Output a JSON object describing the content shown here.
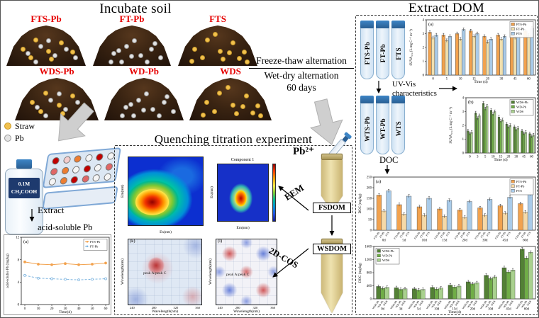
{
  "incubate": {
    "title": "Incubate soil",
    "piles": [
      {
        "label": "FTS-Pb",
        "straw": true,
        "pb": true
      },
      {
        "label": "FT-Pb",
        "straw": false,
        "pb": true
      },
      {
        "label": "FTS",
        "straw": true,
        "pb": false
      },
      {
        "label": "WDS-Pb",
        "straw": true,
        "pb": true
      },
      {
        "label": "WD-Pb",
        "straw": false,
        "pb": true
      },
      {
        "label": "WDS",
        "straw": true,
        "pb": false
      }
    ],
    "legend": [
      {
        "label": "Straw",
        "color": "#f2c14e"
      },
      {
        "label": "Pb",
        "color": "#e3e3e3"
      }
    ]
  },
  "transition": {
    "line1": "Freeze-thaw alternation",
    "line2": "Wet-dry alternation",
    "line3": "60 days"
  },
  "acid_section": {
    "bottle_line1": "0.1M",
    "bottle_line2": "CH₃COOH",
    "extract_label": "Extract",
    "product_label": "acid-soluble Pb"
  },
  "quenching": {
    "title": "Quenching titration experiment",
    "pb_label": "Pb²⁺",
    "eem_arrow": "EEM",
    "cos_arrow": "2D-COS",
    "fsdom": "FSDOM",
    "wsdom": "WSDOM",
    "eem_plot": {
      "xlabel": "Ex(nm)",
      "ylabel": "Em(nm)"
    },
    "component_plot": {
      "title": "Component 1",
      "xlabel": "Em(nm)",
      "ylabel": "Ex(nm)"
    },
    "cos_k": {
      "tag": "(k)",
      "annotation": "peak A/peak C",
      "xlabel": "Wavelength(nm)",
      "ylabel": "Wavelength(nm)",
      "xticks": [
        "240",
        "280",
        "320",
        "360"
      ]
    },
    "cos_l": {
      "tag": "(l)",
      "annotation": "peak A/peak C",
      "xlabel": "Wavelength(nm)",
      "ylabel": "Wavelength(nm)",
      "xticks": [
        "240",
        "280",
        "320",
        "360"
      ]
    }
  },
  "extract_dom": {
    "title": "Extract DOM",
    "ft_tubes": [
      "FTS-Pb",
      "FT-Pb",
      "FTS"
    ],
    "wt_tubes": [
      "WTS-Pb",
      "WT-Pb",
      "WTS"
    ],
    "uv_line1": "UV-Vis",
    "uv_line2": "characteristics",
    "doc_label": "DOC"
  },
  "chart_data": [
    {
      "id": "suva_ft",
      "type": "bar",
      "tag": "(a)",
      "categories": [
        "0",
        "5",
        "10",
        "15",
        "20",
        "30",
        "45",
        "60"
      ],
      "series": [
        {
          "name": "FTS-Pb",
          "color": "#f2a24e",
          "values": [
            3.1,
            2.9,
            3.0,
            3.2,
            2.8,
            2.9,
            3.0,
            3.2
          ]
        },
        {
          "name": "FT-Pb",
          "color": "#f0dfae",
          "values": [
            2.7,
            2.5,
            2.6,
            2.8,
            2.4,
            2.6,
            2.7,
            2.9
          ]
        },
        {
          "name": "FTS",
          "color": "#a9cbe9",
          "values": [
            2.9,
            2.8,
            3.3,
            3.0,
            2.6,
            2.8,
            3.1,
            3.4
          ]
        }
      ],
      "xlabel": "Time (d)",
      "ylabel": "SUVA₂₅₄ (L mg C⁻¹ m⁻¹)",
      "ylim": [
        0,
        4
      ],
      "yticks": [
        0,
        1,
        2,
        3,
        4
      ],
      "legend": "ne"
    },
    {
      "id": "suva_wd",
      "type": "bar",
      "tag": "(b)",
      "categories": [
        "0",
        "3",
        "5",
        "10",
        "15",
        "20",
        "30",
        "45",
        "60"
      ],
      "series": [
        {
          "name": "WDS-Pb",
          "color": "#538135",
          "values": [
            1.6,
            2.9,
            3.6,
            3.1,
            2.6,
            2.1,
            1.9,
            1.6,
            1.4
          ]
        },
        {
          "name": "WD-Pb",
          "color": "#70ad47",
          "values": [
            1.4,
            2.5,
            3.2,
            2.8,
            2.3,
            1.9,
            1.7,
            1.4,
            1.2
          ]
        },
        {
          "name": "WDS",
          "color": "#a9d18e",
          "values": [
            1.5,
            2.7,
            3.4,
            3.0,
            2.4,
            2.0,
            1.8,
            1.5,
            1.3
          ]
        }
      ],
      "xlabel": "Time (d)",
      "ylabel": "SUVA₂₅₄ (L mg C⁻¹ m⁻¹)",
      "ylim": [
        0,
        4
      ],
      "yticks": [
        0,
        1,
        2,
        3,
        4
      ],
      "legend": "ne"
    },
    {
      "id": "doc_ft",
      "type": "bar",
      "tag": "(a)",
      "categories": [
        "0d",
        "5d",
        "10d",
        "15d",
        "20d",
        "30d",
        "45d",
        "60d"
      ],
      "series": [
        {
          "name": "FTS-Pb",
          "color": "#f2a24e",
          "values": [
            165,
            120,
            110,
            100,
            95,
            105,
            115,
            125
          ]
        },
        {
          "name": "FT-Pb",
          "color": "#f5d9a8",
          "values": [
            90,
            75,
            70,
            65,
            60,
            70,
            80,
            85
          ]
        },
        {
          "name": "FTS",
          "color": "#a9cbe9",
          "values": [
            185,
            160,
            150,
            140,
            135,
            145,
            155,
            170
          ]
        }
      ],
      "xlabel": "",
      "ylabel": "DOC (mg/kg)",
      "ylim": [
        0,
        250
      ],
      "yticks": [
        0,
        50,
        100,
        150,
        200,
        250
      ],
      "legend": "ne",
      "perBarLabels": true
    },
    {
      "id": "doc_wd",
      "type": "bar",
      "tag": "(b)",
      "categories": [
        "0d",
        "3d",
        "5d",
        "10d",
        "15d",
        "20d",
        "30d",
        "45d",
        "60d"
      ],
      "series": [
        {
          "name": "WDS-Pb",
          "color": "#538135",
          "values": [
            380,
            340,
            310,
            350,
            420,
            520,
            720,
            950,
            1520
          ]
        },
        {
          "name": "WD-Pb",
          "color": "#70ad47",
          "values": [
            320,
            290,
            270,
            300,
            360,
            460,
            620,
            820,
            1250
          ]
        },
        {
          "name": "WDS",
          "color": "#a9d18e",
          "values": [
            350,
            310,
            290,
            330,
            390,
            490,
            670,
            880,
            1420
          ]
        }
      ],
      "xlabel": "Time(d)",
      "ylabel": "DOC (mg/kg)",
      "ylim": [
        0,
        1600
      ],
      "yticks": [
        0,
        400,
        800,
        1200,
        1600
      ],
      "legend": "nw",
      "perBarLabels": true
    },
    {
      "id": "acid_pb",
      "type": "line",
      "tag": "(a)",
      "x": [
        "0",
        "10",
        "20",
        "30",
        "40",
        "50",
        "60"
      ],
      "series": [
        {
          "name": "FTS-Pb",
          "color": "#f2a24e",
          "values": [
            7.6,
            7.2,
            7.1,
            7.3,
            7.1,
            7.2,
            7.4
          ]
        },
        {
          "name": "FT-Pb",
          "color": "#7eb5e0",
          "values": [
            5.2,
            4.7,
            4.6,
            4.5,
            4.4,
            4.5,
            4.6
          ]
        }
      ],
      "xlabel": "Time(d)",
      "ylabel": "acid-soluble Pb (mg/kg)",
      "ylim": [
        0,
        12
      ],
      "yticks": [
        0,
        4,
        8,
        12
      ],
      "legend": "ne"
    }
  ]
}
